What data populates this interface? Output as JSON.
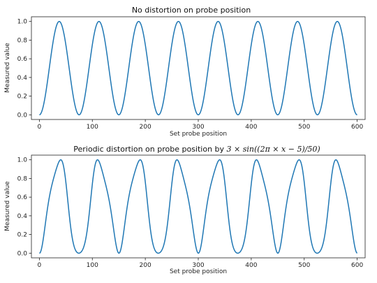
{
  "chart_data": [
    {
      "type": "line",
      "title": "No distortion on probe position",
      "xlabel": "Set probe position",
      "ylabel": "Measured value",
      "xlim": [
        -15,
        615
      ],
      "ylim": [
        -0.05,
        1.05
      ],
      "xticks": [
        0,
        100,
        200,
        300,
        400,
        500,
        600
      ],
      "yticks": [
        0.0,
        0.2,
        0.4,
        0.6,
        0.8,
        1.0
      ],
      "xtick_labels": [
        "0",
        "100",
        "200",
        "300",
        "400",
        "500",
        "600"
      ],
      "ytick_labels": [
        "0.0",
        "0.2",
        "0.4",
        "0.6",
        "0.8",
        "1.0"
      ],
      "grid": false,
      "series": [
        {
          "color": "#1f77b4",
          "model": "y = sin^2(pi * x / 75)",
          "x_range": [
            0,
            600
          ],
          "period": 75,
          "peaks_x": [
            37.5,
            112.5,
            187.5,
            262.5,
            337.5,
            412.5,
            487.5,
            562.5
          ],
          "troughs_x": [
            0,
            75,
            150,
            225,
            300,
            375,
            450,
            525,
            600
          ]
        }
      ]
    },
    {
      "type": "line",
      "title": "Periodic distortion on probe position by 3 × sin((2π × x − 5)/50)",
      "title_parts": [
        "Periodic distortion on probe position by ",
        "3 × sin((2π × x − 5)/50)"
      ],
      "xlabel": "Set probe position",
      "ylabel": "Measured value",
      "xlim": [
        -15,
        615
      ],
      "ylim": [
        -0.05,
        1.05
      ],
      "xticks": [
        0,
        100,
        200,
        300,
        400,
        500,
        600
      ],
      "yticks": [
        0.0,
        0.2,
        0.4,
        0.6,
        0.8,
        1.0
      ],
      "xtick_labels": [
        "0",
        "100",
        "200",
        "300",
        "400",
        "500",
        "600"
      ],
      "ytick_labels": [
        "0.0",
        "0.2",
        "0.4",
        "0.6",
        "0.8",
        "1.0"
      ],
      "grid": false,
      "series": [
        {
          "color": "#1f77b4",
          "model": "y = sin^2(pi * (x + 3*sin(2*pi*(x - 5)/50)) / 75)",
          "x_range": [
            0,
            600
          ],
          "period": 75,
          "distortion_amplitude": 3,
          "distortion_period": 50,
          "distortion_phase": 5
        }
      ]
    }
  ]
}
